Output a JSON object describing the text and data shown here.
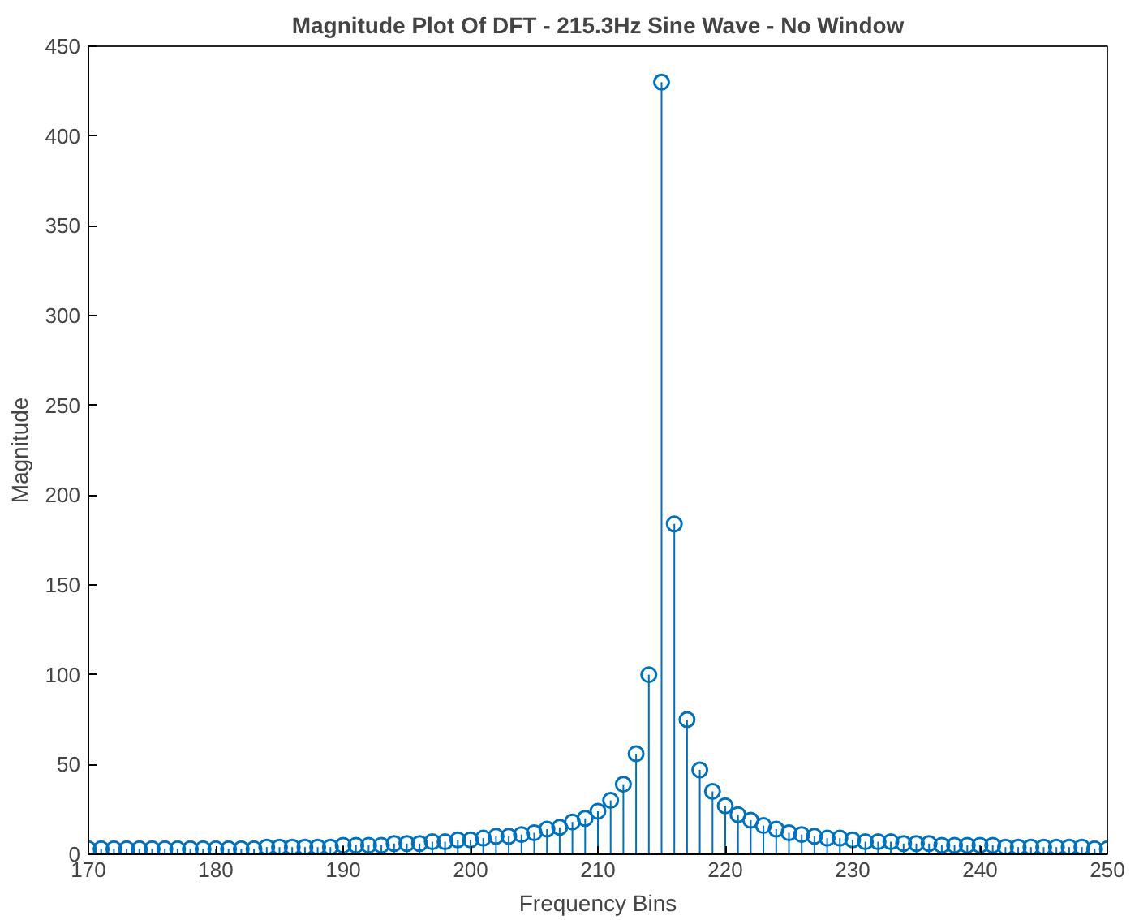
{
  "chart_data": {
    "type": "lollipop",
    "title": "Magnitude Plot Of DFT - 215.3Hz Sine Wave - No Window",
    "xlabel": "Frequency Bins",
    "ylabel": "Magnitude",
    "x": [
      170,
      171,
      172,
      173,
      174,
      175,
      176,
      177,
      178,
      179,
      180,
      181,
      182,
      183,
      184,
      185,
      186,
      187,
      188,
      189,
      190,
      191,
      192,
      193,
      194,
      195,
      196,
      197,
      198,
      199,
      200,
      201,
      202,
      203,
      204,
      205,
      206,
      207,
      208,
      209,
      210,
      211,
      212,
      213,
      214,
      215,
      216,
      217,
      218,
      219,
      220,
      221,
      222,
      223,
      224,
      225,
      226,
      227,
      228,
      229,
      230,
      231,
      232,
      233,
      234,
      235,
      236,
      237,
      238,
      239,
      240,
      241,
      242,
      243,
      244,
      245,
      246,
      247,
      248,
      249,
      250
    ],
    "series": [
      {
        "color": "#0072bd",
        "values": [
          3,
          3,
          3,
          3,
          3,
          3,
          3,
          3,
          3,
          3,
          3,
          3,
          3,
          3,
          4,
          4,
          4,
          4,
          4,
          4,
          5,
          5,
          5,
          5,
          6,
          6,
          6,
          7,
          7,
          8,
          8,
          9,
          10,
          10,
          11,
          12,
          14,
          15,
          18,
          20,
          24,
          30,
          39,
          56,
          100,
          430,
          184,
          75,
          47,
          35,
          27,
          22,
          19,
          16,
          14,
          12,
          11,
          10,
          9,
          9,
          8,
          7,
          7,
          7,
          6,
          6,
          6,
          5,
          5,
          5,
          5,
          5,
          4,
          4,
          4,
          4,
          4,
          4,
          4,
          3,
          3
        ]
      }
    ],
    "xlim": [
      170,
      250
    ],
    "xticks": [
      170,
      180,
      190,
      200,
      210,
      220,
      230,
      240,
      250
    ],
    "ylim": [
      0,
      450
    ],
    "yticks": [
      0,
      50,
      100,
      150,
      200,
      250,
      300,
      350,
      400,
      450
    ],
    "grid": false,
    "marker": "circle"
  }
}
